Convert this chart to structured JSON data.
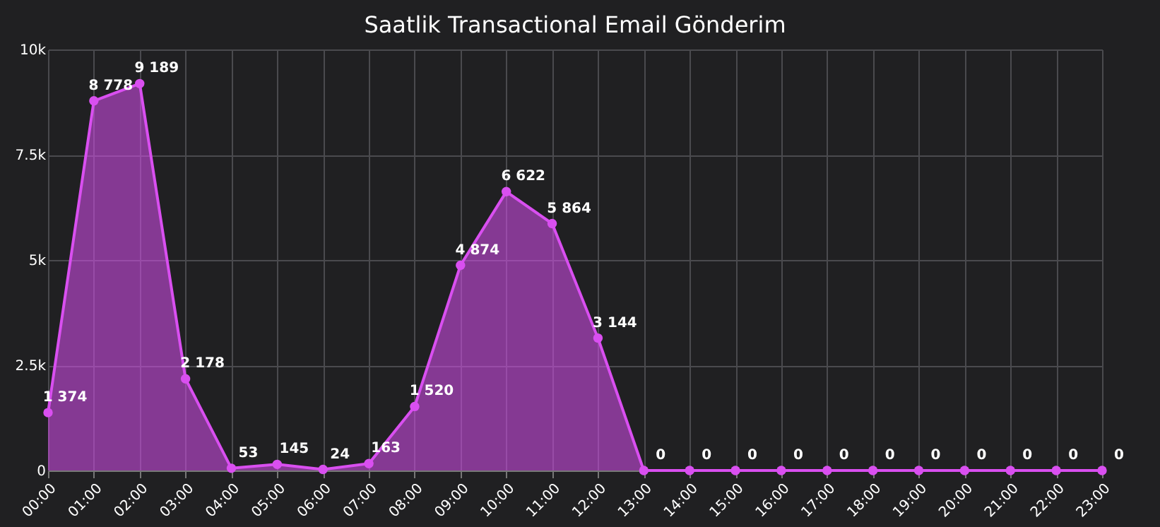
{
  "chart_data": {
    "type": "area",
    "title": "Saatlik Transactional Email Gönderim",
    "categories": [
      "00:00",
      "01:00",
      "02:00",
      "03:00",
      "04:00",
      "05:00",
      "06:00",
      "07:00",
      "08:00",
      "09:00",
      "10:00",
      "11:00",
      "12:00",
      "13:00",
      "14:00",
      "15:00",
      "16:00",
      "17:00",
      "18:00",
      "19:00",
      "20:00",
      "21:00",
      "22:00",
      "23:00"
    ],
    "series": [
      {
        "color": "#d94ff0",
        "values": [
          1374,
          8778,
          9189,
          2178,
          53,
          145,
          24,
          163,
          1520,
          4874,
          6622,
          5864,
          3144,
          0,
          0,
          0,
          0,
          0,
          0,
          0,
          0,
          0,
          0,
          0
        ],
        "value_labels": [
          "1 374",
          "8 778",
          "9 189",
          "2 178",
          "53",
          "145",
          "24",
          "163",
          "1 520",
          "4 874",
          "6 622",
          "5 864",
          "3 144",
          "0",
          "0",
          "0",
          "0",
          "0",
          "0",
          "0",
          "0",
          "0",
          "0",
          "0"
        ]
      }
    ],
    "ylim": [
      0,
      10000
    ],
    "yticks": [
      0,
      {
        "value": 2500,
        "label": "2.5k"
      },
      {
        "value": 5000,
        "label": "5k"
      },
      {
        "value": 7500,
        "label": "7.5k"
      },
      {
        "value": 10000,
        "label": "10k"
      }
    ],
    "grid": true,
    "marker": "circle"
  }
}
